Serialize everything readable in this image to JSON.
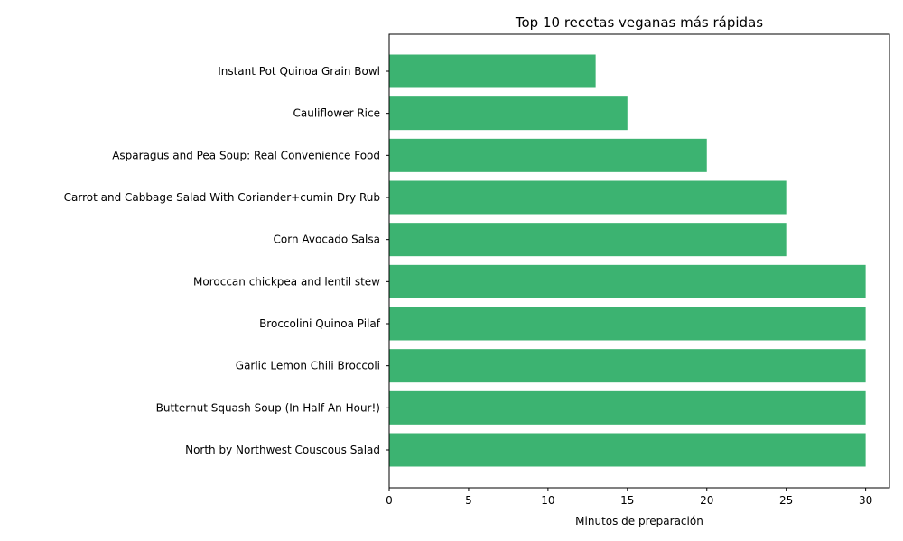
{
  "chart_data": {
    "type": "bar",
    "orientation": "horizontal",
    "title": "Top 10 recetas veganas más rápidas",
    "xlabel": "Minutos de preparación",
    "ylabel": "",
    "xlim": [
      0,
      31.5
    ],
    "xticks": [
      0,
      5,
      10,
      15,
      20,
      25,
      30
    ],
    "grid": false,
    "bar_color": "#3cb371",
    "categories": [
      "Instant Pot Quinoa Grain Bowl",
      "Cauliflower Rice",
      "Asparagus and Pea Soup: Real Convenience Food",
      "Carrot and Cabbage Salad With Coriander+cumin Dry Rub",
      "Corn Avocado Salsa",
      "Moroccan chickpea and lentil stew",
      "Broccolini Quinoa Pilaf",
      "Garlic Lemon Chili Broccoli",
      "Butternut Squash Soup (In Half An Hour!)",
      "North by Northwest Couscous Salad"
    ],
    "values": [
      13,
      15,
      20,
      25,
      25,
      30,
      30,
      30,
      30,
      30
    ]
  }
}
